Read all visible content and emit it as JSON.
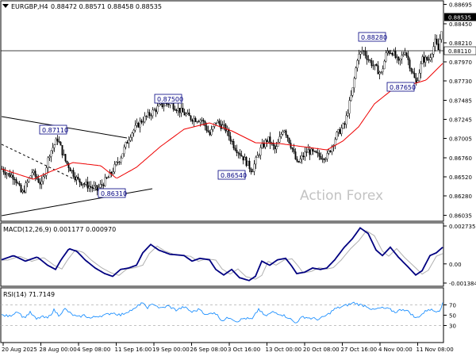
{
  "header": {
    "symbol": "EURGBP,H4",
    "ohlc": "0.88472 0.88571 0.88458 0.88535"
  },
  "watermark": "Action Forex",
  "colors": {
    "candle": "#000000",
    "ma": "#ee0000",
    "macd_main": "#000080",
    "macd_signal": "#b0b0b0",
    "rsi": "#1e90ff",
    "trendline": "#000000",
    "label_border": "#000080"
  },
  "chart_data": [
    {
      "type": "candlestick",
      "panel": "price",
      "ylim": [
        0.8598,
        0.8872
      ],
      "y_tick_labels": [
        "0.88695",
        "0.88450",
        "0.88210",
        "0.87970",
        "0.87730",
        "0.87485",
        "0.87245",
        "0.87005",
        "0.86760",
        "0.86520",
        "0.86280",
        "0.86035"
      ],
      "current_price_label": "0.88535",
      "hline_label": "0.88110",
      "hline_value": 0.8811,
      "annotations": [
        {
          "text": "0.87110",
          "value": 0.8711
        },
        {
          "text": "0.86310",
          "value": 0.8631
        },
        {
          "text": "0.87500",
          "value": 0.875
        },
        {
          "text": "0.86540",
          "value": 0.8654
        },
        {
          "text": "0.88280",
          "value": 0.8828
        },
        {
          "text": "0.87650",
          "value": 0.8765
        }
      ],
      "anchor_closes": [
        [
          0,
          0.8662
        ],
        [
          8,
          0.8655
        ],
        [
          16,
          0.8652
        ],
        [
          25,
          0.863
        ],
        [
          38,
          0.8658
        ],
        [
          50,
          0.8642
        ],
        [
          60,
          0.8682
        ],
        [
          70,
          0.87
        ],
        [
          80,
          0.8672
        ],
        [
          95,
          0.8648
        ],
        [
          110,
          0.864
        ],
        [
          120,
          0.8636
        ],
        [
          135,
          0.8652
        ],
        [
          150,
          0.8678
        ],
        [
          162,
          0.8706
        ],
        [
          175,
          0.8722
        ],
        [
          185,
          0.873
        ],
        [
          200,
          0.8742
        ],
        [
          212,
          0.8745
        ],
        [
          225,
          0.8735
        ],
        [
          238,
          0.8726
        ],
        [
          252,
          0.8724
        ],
        [
          262,
          0.8705
        ],
        [
          270,
          0.8722
        ],
        [
          282,
          0.8712
        ],
        [
          292,
          0.8692
        ],
        [
          305,
          0.8675
        ],
        [
          315,
          0.866
        ],
        [
          325,
          0.8685
        ],
        [
          335,
          0.87
        ],
        [
          345,
          0.8685
        ],
        [
          355,
          0.8715
        ],
        [
          365,
          0.869
        ],
        [
          372,
          0.8668
        ],
        [
          385,
          0.8685
        ],
        [
          400,
          0.8678
        ],
        [
          410,
          0.8678
        ],
        [
          422,
          0.8705
        ],
        [
          432,
          0.8718
        ],
        [
          442,
          0.8762
        ],
        [
          448,
          0.8802
        ],
        [
          455,
          0.8812
        ],
        [
          462,
          0.88
        ],
        [
          470,
          0.879
        ],
        [
          478,
          0.8782
        ],
        [
          485,
          0.881
        ],
        [
          492,
          0.881
        ],
        [
          500,
          0.8795
        ],
        [
          508,
          0.8812
        ],
        [
          515,
          0.879
        ],
        [
          522,
          0.877
        ],
        [
          530,
          0.88
        ],
        [
          538,
          0.88
        ],
        [
          546,
          0.8822
        ],
        [
          550,
          0.8812
        ],
        [
          556,
          0.8853
        ]
      ],
      "moving_average_anchors": [
        [
          0,
          0.8662
        ],
        [
          40,
          0.8649
        ],
        [
          60,
          0.8658
        ],
        [
          90,
          0.867
        ],
        [
          125,
          0.8666
        ],
        [
          145,
          0.865
        ],
        [
          170,
          0.8664
        ],
        [
          200,
          0.869
        ],
        [
          230,
          0.8712
        ],
        [
          262,
          0.872
        ],
        [
          290,
          0.871
        ],
        [
          320,
          0.8695
        ],
        [
          350,
          0.8694
        ],
        [
          380,
          0.869
        ],
        [
          410,
          0.8686
        ],
        [
          430,
          0.8697
        ],
        [
          450,
          0.8715
        ],
        [
          470,
          0.8744
        ],
        [
          490,
          0.876
        ],
        [
          515,
          0.8768
        ],
        [
          535,
          0.8774
        ],
        [
          556,
          0.8795
        ]
      ],
      "trendlines": [
        {
          "from": [
            0,
            0.8728
          ],
          "to": [
            158,
            0.8701
          ]
        },
        {
          "from": [
            0,
            0.8603
          ],
          "to": [
            190,
            0.8637
          ]
        },
        {
          "from": [
            0,
            0.8693
          ],
          "to": [
            125,
            0.8633
          ]
        }
      ]
    },
    {
      "type": "line",
      "panel": "macd",
      "title": "MACD(12,26,9) 0.001177 0.000970",
      "ylim": [
        -0.0015,
        0.00285
      ],
      "y_tick_labels": [
        "0.002735",
        "0.00",
        "-0.001384"
      ],
      "series": [
        {
          "name": "MACD",
          "anchors": [
            [
              0,
              0.0003
            ],
            [
              15,
              0.0006
            ],
            [
              30,
              0.0002
            ],
            [
              45,
              0.0005
            ],
            [
              58,
              -0.0001
            ],
            [
              68,
              -0.0004
            ],
            [
              75,
              0.0003
            ],
            [
              85,
              0.0011
            ],
            [
              95,
              0.0009
            ],
            [
              105,
              0.0003
            ],
            [
              118,
              -0.0003
            ],
            [
              130,
              -0.0007
            ],
            [
              140,
              -0.0009
            ],
            [
              150,
              -0.0004
            ],
            [
              160,
              -0.0003
            ],
            [
              170,
              -0.0001
            ],
            [
              178,
              0.0008
            ],
            [
              188,
              0.0014
            ],
            [
              198,
              0.001
            ],
            [
              212,
              0.0007
            ],
            [
              230,
              0.0006
            ],
            [
              240,
              0.0002
            ],
            [
              250,
              0.0004
            ],
            [
              262,
              0.0003
            ],
            [
              270,
              -0.0004
            ],
            [
              280,
              -0.0008
            ],
            [
              290,
              -0.0004
            ],
            [
              300,
              -0.001
            ],
            [
              312,
              -0.0012
            ],
            [
              320,
              -0.0009
            ],
            [
              328,
              0.0002
            ],
            [
              338,
              -0.0001
            ],
            [
              348,
              0.0003
            ],
            [
              358,
              0.0004
            ],
            [
              365,
              -0.0001
            ],
            [
              372,
              -0.0007
            ],
            [
              382,
              -0.0006
            ],
            [
              392,
              -0.0003
            ],
            [
              402,
              -0.0004
            ],
            [
              410,
              -0.0003
            ],
            [
              420,
              0.0003
            ],
            [
              432,
              0.0012
            ],
            [
              442,
              0.0018
            ],
            [
              452,
              0.0026
            ],
            [
              462,
              0.0022
            ],
            [
              472,
              0.001
            ],
            [
              480,
              0.0006
            ],
            [
              490,
              0.0012
            ],
            [
              500,
              0.0005
            ],
            [
              512,
              -0.0002
            ],
            [
              522,
              -0.0008
            ],
            [
              530,
              -0.0005
            ],
            [
              540,
              0.0006
            ],
            [
              548,
              0.0008
            ],
            [
              556,
              0.0012
            ]
          ]
        },
        {
          "name": "Signal",
          "anchors": []
        }
      ]
    },
    {
      "type": "line",
      "panel": "rsi",
      "title": "RSI(14) 71.7149",
      "ylim": [
        0,
        100
      ],
      "y_tick_labels": [
        "70",
        "50",
        "30"
      ],
      "levels": [
        70,
        30
      ],
      "series": [
        {
          "name": "RSI",
          "anchors": [
            [
              0,
              50
            ],
            [
              10,
              48
            ],
            [
              20,
              58
            ],
            [
              28,
              45
            ],
            [
              36,
              55
            ],
            [
              44,
              42
            ],
            [
              50,
              47
            ],
            [
              58,
              44
            ],
            [
              66,
              60
            ],
            [
              72,
              50
            ],
            [
              80,
              62
            ],
            [
              88,
              52
            ],
            [
              96,
              46
            ],
            [
              104,
              50
            ],
            [
              112,
              44
            ],
            [
              120,
              48
            ],
            [
              130,
              50
            ],
            [
              140,
              55
            ],
            [
              150,
              50
            ],
            [
              160,
              58
            ],
            [
              168,
              62
            ],
            [
              176,
              74
            ],
            [
              184,
              65
            ],
            [
              192,
              72
            ],
            [
              200,
              63
            ],
            [
              210,
              68
            ],
            [
              220,
              60
            ],
            [
              230,
              66
            ],
            [
              240,
              56
            ],
            [
              250,
              62
            ],
            [
              258,
              50
            ],
            [
              268,
              56
            ],
            [
              278,
              40
            ],
            [
              288,
              46
            ],
            [
              296,
              38
            ],
            [
              306,
              44
            ],
            [
              316,
              42
            ],
            [
              324,
              62
            ],
            [
              332,
              48
            ],
            [
              342,
              56
            ],
            [
              352,
              52
            ],
            [
              362,
              45
            ],
            [
              370,
              35
            ],
            [
              380,
              47
            ],
            [
              390,
              44
            ],
            [
              400,
              42
            ],
            [
              410,
              50
            ],
            [
              420,
              62
            ],
            [
              428,
              66
            ],
            [
              436,
              70
            ],
            [
              444,
              74
            ],
            [
              452,
              70
            ],
            [
              460,
              68
            ],
            [
              468,
              60
            ],
            [
              478,
              64
            ],
            [
              488,
              62
            ],
            [
              496,
              56
            ],
            [
              506,
              62
            ],
            [
              514,
              56
            ],
            [
              522,
              44
            ],
            [
              530,
              52
            ],
            [
              538,
              62
            ],
            [
              546,
              58
            ],
            [
              552,
              60
            ],
            [
              556,
              72
            ]
          ]
        }
      ]
    },
    {
      "type": "axis",
      "panel": "x",
      "x_tick_labels": [
        "20 Aug 2025",
        "28 Aug 00:00",
        "4 Sep 08:00",
        "11 Sep 16:00",
        "19 Sep 00:00",
        "26 Sep 08:00",
        "3 Oct 16:00",
        "13 Oct 00:00",
        "20 Oct 08:00",
        "27 Oct 16:00",
        "4 Nov 00:00",
        "11 Nov 08:00"
      ]
    }
  ]
}
